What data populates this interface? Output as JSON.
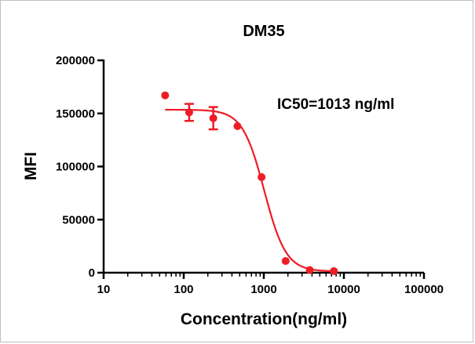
{
  "chart_data": {
    "type": "scatter",
    "title": "DM35",
    "xlabel": "Concentration(ng/ml)",
    "ylabel": "MFI",
    "x_scale": "log",
    "xlim": [
      10,
      100000
    ],
    "ylim": [
      0,
      200000
    ],
    "x_ticks": [
      10,
      100,
      1000,
      10000,
      100000
    ],
    "x_tick_labels": [
      "10",
      "100",
      "1000",
      "10000",
      "100000"
    ],
    "y_ticks": [
      0,
      50000,
      100000,
      150000,
      200000
    ],
    "y_tick_labels": [
      "0",
      "50000",
      "100000",
      "150000",
      "200000"
    ],
    "annotation": "IC50=1013 ng/ml",
    "grid": false,
    "colors": {
      "series": "#ee1c25",
      "axis": "#000000"
    },
    "series": [
      {
        "points": [
          {
            "x": 58.6,
            "y": 167000,
            "err": 0
          },
          {
            "x": 117,
            "y": 151000,
            "err": 8000
          },
          {
            "x": 234,
            "y": 145500,
            "err": 10500
          },
          {
            "x": 469,
            "y": 138000,
            "err": 0
          },
          {
            "x": 938,
            "y": 90000,
            "err": 0
          },
          {
            "x": 1875,
            "y": 11000,
            "err": 0
          },
          {
            "x": 3750,
            "y": 2500,
            "err": 0
          },
          {
            "x": 7500,
            "y": 1500,
            "err": 0
          }
        ],
        "fit": {
          "top": 153500,
          "bottom": 1200,
          "ic50": 1013,
          "hill": 3.2
        }
      }
    ]
  }
}
